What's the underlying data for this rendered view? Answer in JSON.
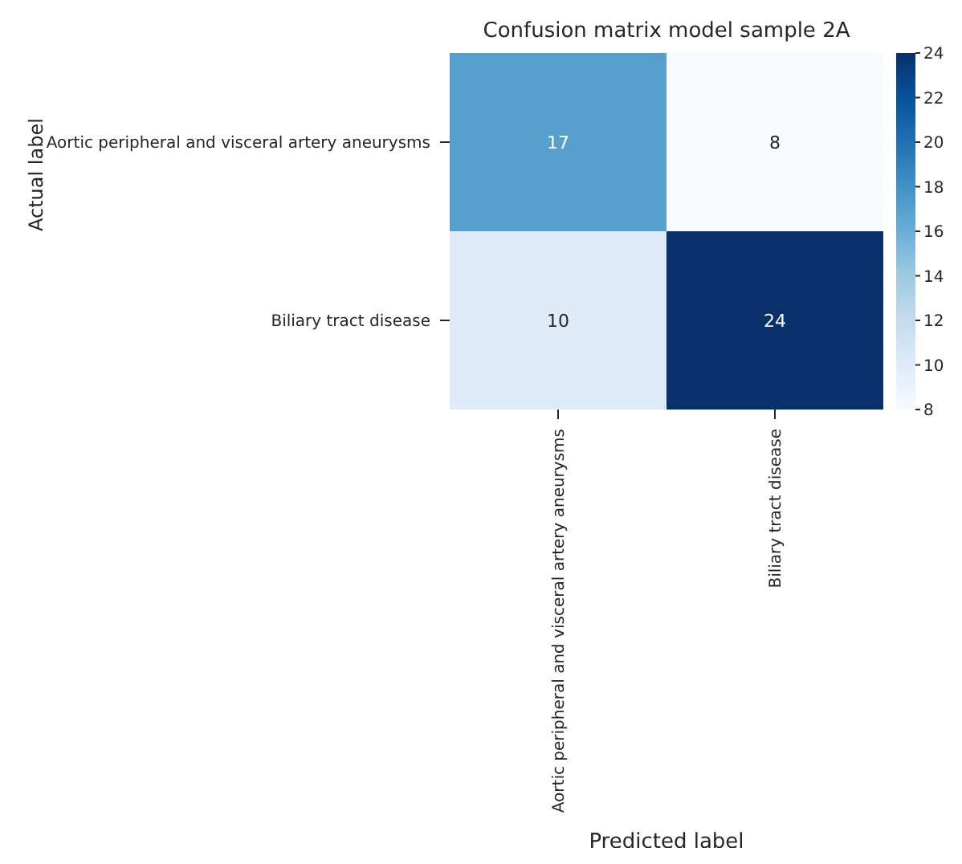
{
  "chart_data": {
    "type": "heatmap",
    "title": "Confusion matrix model sample 2A",
    "xlabel": "Predicted label",
    "ylabel": "Actual label",
    "categories": [
      "Aortic peripheral and visceral artery aneurysms",
      "Biliary tract disease"
    ],
    "y_categories": [
      "Aortic peripheral and visceral artery aneurysms",
      "Biliary tract disease"
    ],
    "cells": [
      [
        17,
        8
      ],
      [
        10,
        24
      ]
    ],
    "clim": [
      8,
      24
    ],
    "cticks": [
      8,
      10,
      12,
      14,
      16,
      18,
      20,
      22,
      24
    ],
    "data_labels": true
  }
}
